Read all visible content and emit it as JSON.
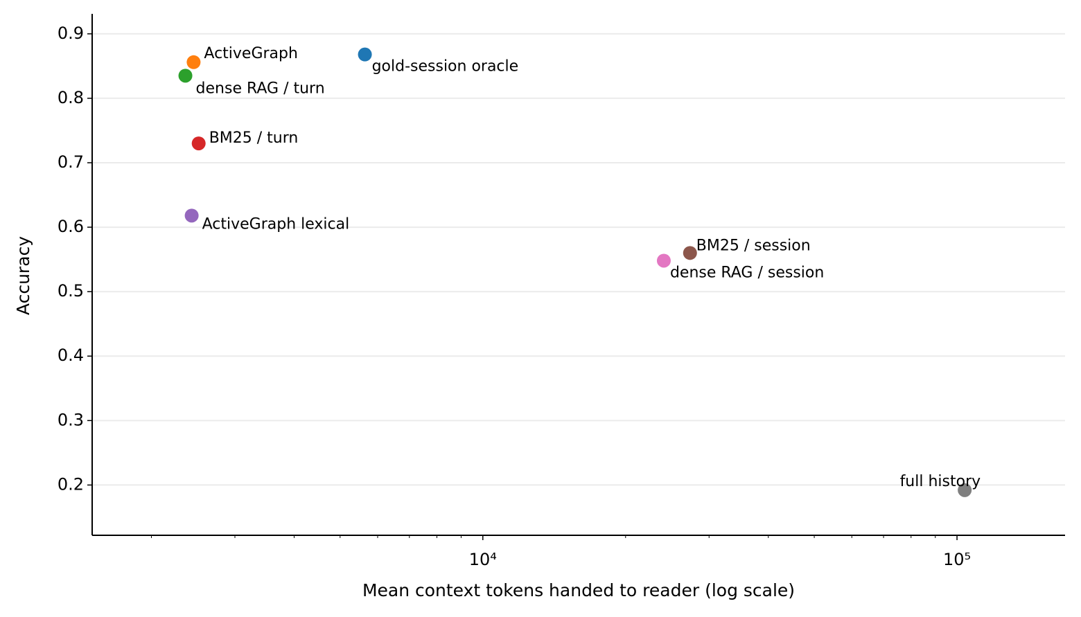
{
  "chart_data": {
    "type": "scatter",
    "xlabel": "Mean context tokens handed to reader (log scale)",
    "ylabel": "Accuracy",
    "xscale": "log",
    "xlim": [
      1500,
      169000
    ],
    "ylim": [
      0.122,
      0.931
    ],
    "xticks": [
      {
        "value": 10000,
        "label": "10⁴"
      },
      {
        "value": 100000,
        "label": "10⁵"
      }
    ],
    "xminorticks": [
      2000,
      3000,
      4000,
      5000,
      6000,
      7000,
      8000,
      9000,
      20000,
      30000,
      40000,
      50000,
      60000,
      70000,
      80000,
      90000,
      200000
    ],
    "yticks": [
      0.2,
      0.3,
      0.4,
      0.5,
      0.6,
      0.7,
      0.8,
      0.9
    ],
    "grid": true,
    "series": [
      {
        "name": "gold-session oracle",
        "color": "#1f77b4",
        "x": [
          5640
        ],
        "values": [
          0.868
        ]
      },
      {
        "name": "ActiveGraph",
        "color": "#ff7f0e",
        "x": [
          2455
        ],
        "values": [
          0.856
        ]
      },
      {
        "name": "dense RAG / turn",
        "color": "#2ca02c",
        "x": [
          2359
        ],
        "values": [
          0.835
        ]
      },
      {
        "name": "BM25 / turn",
        "color": "#d62728",
        "x": [
          2516
        ],
        "values": [
          0.73
        ]
      },
      {
        "name": "ActiveGraph lexical",
        "color": "#9467bd",
        "x": [
          2432
        ],
        "values": [
          0.618
        ]
      },
      {
        "name": "BM25 / session",
        "color": "#8c564b",
        "x": [
          27350
        ],
        "values": [
          0.56
        ]
      },
      {
        "name": "dense RAG / session",
        "color": "#e377c2",
        "x": [
          24080
        ],
        "values": [
          0.548
        ]
      },
      {
        "name": "full history",
        "color": "#7f7f7f",
        "x": [
          103800
        ],
        "values": [
          0.192
        ]
      }
    ]
  }
}
